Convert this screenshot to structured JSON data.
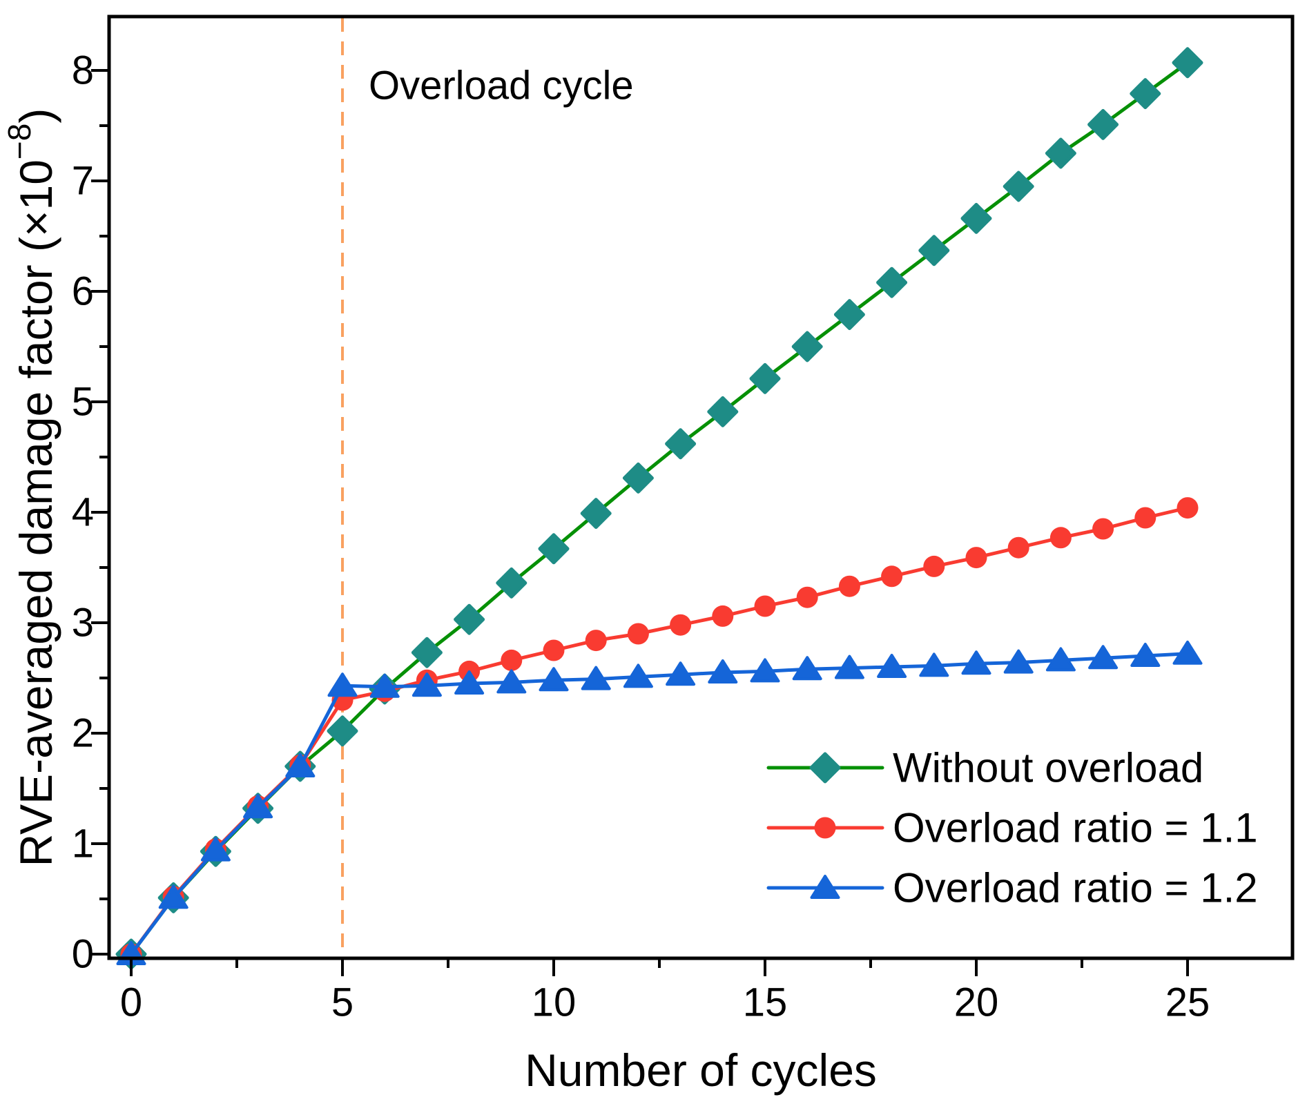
{
  "figure": {
    "annotation_label": "Overload cycle",
    "x_axis_title": "Number of cycles",
    "y_axis_title": "RVE-averaged damage factor (×10⁻⁸)",
    "y_axis_title_parts": {
      "pre": "RVE-averaged damage factor (×10",
      "sup": "−8",
      "post": ")"
    }
  },
  "colors": {
    "green_line": "#069006",
    "teal_marker": "#1e8c86",
    "red": "#f93b31",
    "blue": "#1565d8",
    "overload_dash": "#f9a160",
    "axis": "#000000"
  },
  "chart_data": {
    "type": "line",
    "title": "",
    "xlabel": "Number of cycles",
    "ylabel": "RVE-averaged damage factor (×10⁻⁸)",
    "xlim": [
      -0.5,
      27.5
    ],
    "ylim": [
      0,
      8.5
    ],
    "x_ticks": [
      0,
      5,
      10,
      15,
      20,
      25
    ],
    "x_minor_ticks": [
      2.5,
      7.5,
      12.5,
      17.5,
      22.5
    ],
    "y_ticks": [
      0,
      1,
      2,
      3,
      4,
      5,
      6,
      7,
      8
    ],
    "y_minor_ticks": [
      0.5,
      1.5,
      2.5,
      3.5,
      4.5,
      5.5,
      6.5,
      7.5
    ],
    "grid": false,
    "legend_position": "lower right",
    "annotation": {
      "text": "Overload cycle",
      "x_cycle": 5.6,
      "y_value": 7.9
    },
    "overload_line": {
      "x": 5,
      "style": "dashed",
      "color": "#f9a160"
    },
    "x": [
      0,
      1,
      2,
      3,
      4,
      5,
      6,
      7,
      8,
      9,
      10,
      11,
      12,
      13,
      14,
      15,
      16,
      17,
      18,
      19,
      20,
      21,
      22,
      23,
      24,
      25
    ],
    "series": [
      {
        "name": "Without overload",
        "marker": "diamond",
        "line_color": "#069006",
        "marker_color": "#1e8c86",
        "values": [
          0,
          0.51,
          0.93,
          1.32,
          1.7,
          2.02,
          2.4,
          2.73,
          3.03,
          3.36,
          3.67,
          3.99,
          4.31,
          4.62,
          4.91,
          5.21,
          5.5,
          5.79,
          6.08,
          6.37,
          6.66,
          6.95,
          7.25,
          7.51,
          7.79,
          8.07
        ]
      },
      {
        "name": "Overload ratio = 1.1",
        "marker": "circle",
        "line_color": "#f93b31",
        "marker_color": "#f93b31",
        "values": [
          0,
          0.52,
          0.95,
          1.34,
          1.71,
          2.3,
          2.38,
          2.48,
          2.56,
          2.66,
          2.75,
          2.84,
          2.9,
          2.98,
          3.06,
          3.15,
          3.23,
          3.33,
          3.42,
          3.51,
          3.59,
          3.68,
          3.77,
          3.85,
          3.95,
          4.04
        ]
      },
      {
        "name": "Overload ratio = 1.2",
        "marker": "triangle",
        "line_color": "#1565d8",
        "marker_color": "#1565d8",
        "values": [
          0,
          0.51,
          0.94,
          1.33,
          1.7,
          2.43,
          2.42,
          2.43,
          2.45,
          2.46,
          2.48,
          2.49,
          2.51,
          2.53,
          2.55,
          2.56,
          2.58,
          2.59,
          2.6,
          2.61,
          2.63,
          2.64,
          2.66,
          2.68,
          2.7,
          2.72
        ]
      }
    ]
  }
}
